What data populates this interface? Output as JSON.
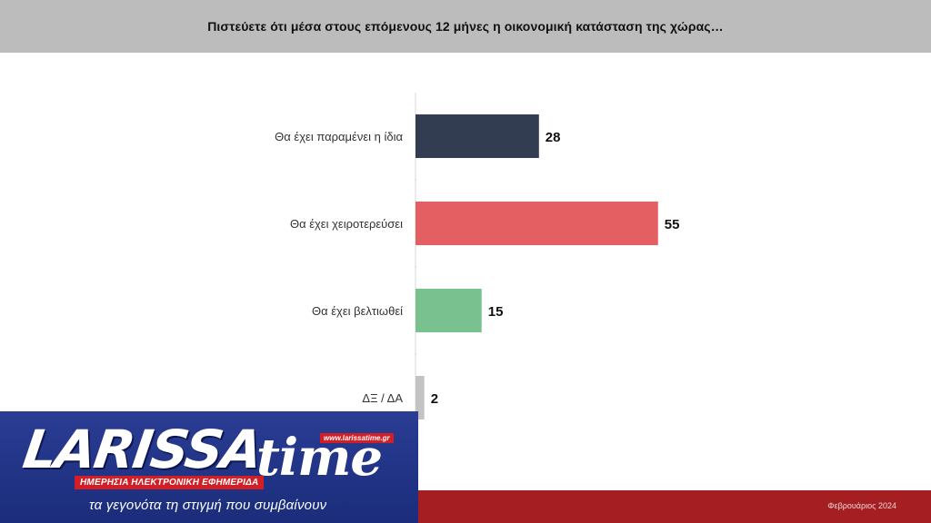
{
  "header": {
    "title": "Πιστεύετε ότι μέσα στους επόμενους 12 μήνες η οικονομική κατάσταση της χώρας…"
  },
  "chart_data": {
    "type": "bar",
    "orientation": "horizontal",
    "categories": [
      "Θα έχει παραμένει η ίδια",
      "Θα έχει χειροτερεύσει",
      "Θα έχει βελτιωθεί",
      "ΔΞ / ΔΑ"
    ],
    "values": [
      28,
      55,
      15,
      2
    ],
    "colors": [
      "#323d52",
      "#e45f62",
      "#79c18f",
      "#c3c3c3"
    ],
    "title": "Πιστεύετε ότι μέσα στους επόμενους 12 μήνες η οικονομική κατάσταση της χώρας…",
    "xlabel": "",
    "ylabel": "",
    "grid": false,
    "data_labels": true
  },
  "logo": {
    "brand_main": "LARISSA",
    "brand_accent": "time",
    "url": "www.larissatime.gr",
    "tagline": "ΗΜΕΡΗΣΙΑ ΗΛΕΚΤΡΟΝΙΚΗ ΕΦΗΜΕΡΙΔΑ",
    "slogan": "τα γεγονότα τη στιγμή που συμβαίνουν"
  },
  "footer": {
    "date": "Φεβρουάριος 2024"
  }
}
